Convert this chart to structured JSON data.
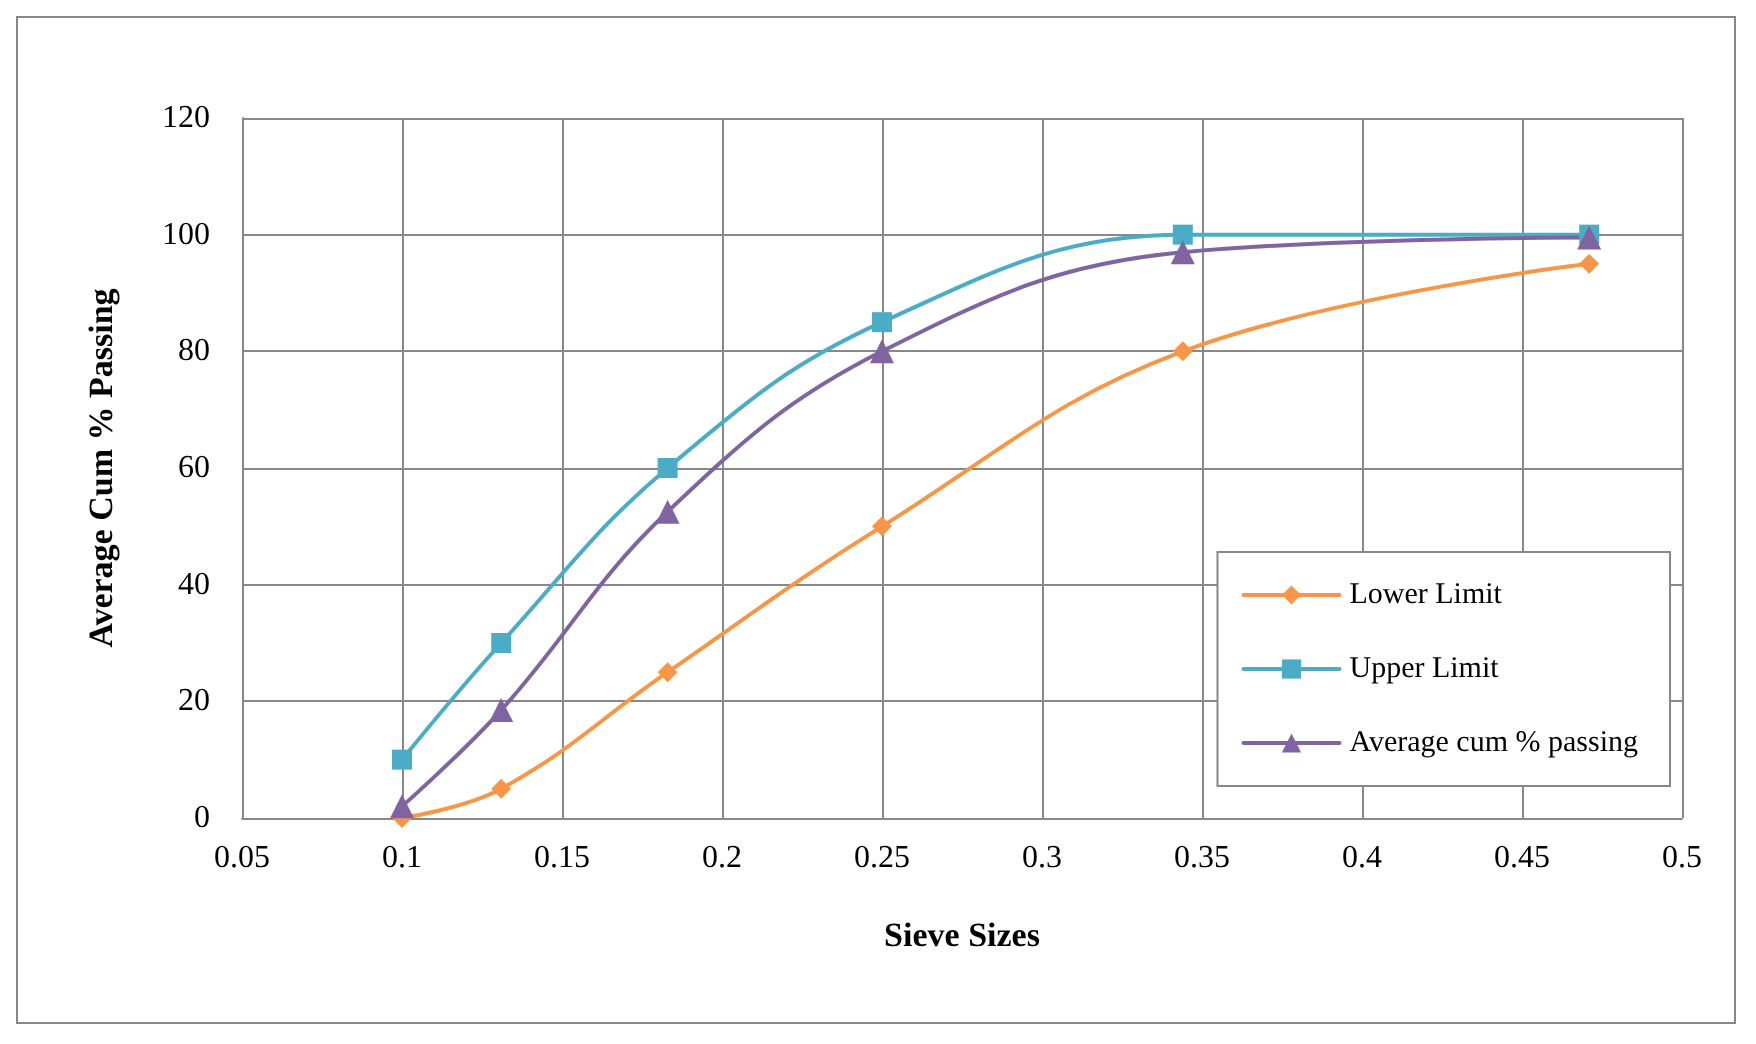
{
  "chart_data": {
    "type": "line",
    "xlabel": "Sieve Sizes",
    "ylabel": "Average Cum % Passing",
    "x": [
      0.1,
      0.131,
      0.183,
      0.25,
      0.344,
      0.471
    ],
    "series": [
      {
        "name": "Lower Limit",
        "color": "#f79646",
        "marker": "diamond",
        "values": [
          0,
          5,
          25,
          50,
          80,
          95
        ]
      },
      {
        "name": "Upper Limit",
        "color": "#4bacc6",
        "marker": "square",
        "values": [
          10,
          30,
          60,
          85,
          100,
          100
        ]
      },
      {
        "name": "Average cum % passing",
        "color": "#8064a2",
        "marker": "triangle",
        "values": [
          2,
          18.5,
          52.5,
          80,
          97,
          99.5
        ]
      }
    ],
    "xlim": [
      0.05,
      0.5
    ],
    "xticks": [
      0.05,
      0.1,
      0.15,
      0.2,
      0.25,
      0.3,
      0.35,
      0.4,
      0.45,
      0.5
    ],
    "ylim": [
      0,
      120
    ],
    "yticks": [
      0,
      20,
      40,
      60,
      80,
      100,
      120
    ],
    "grid": true,
    "legend": "bottom right",
    "line_style": "solid"
  }
}
